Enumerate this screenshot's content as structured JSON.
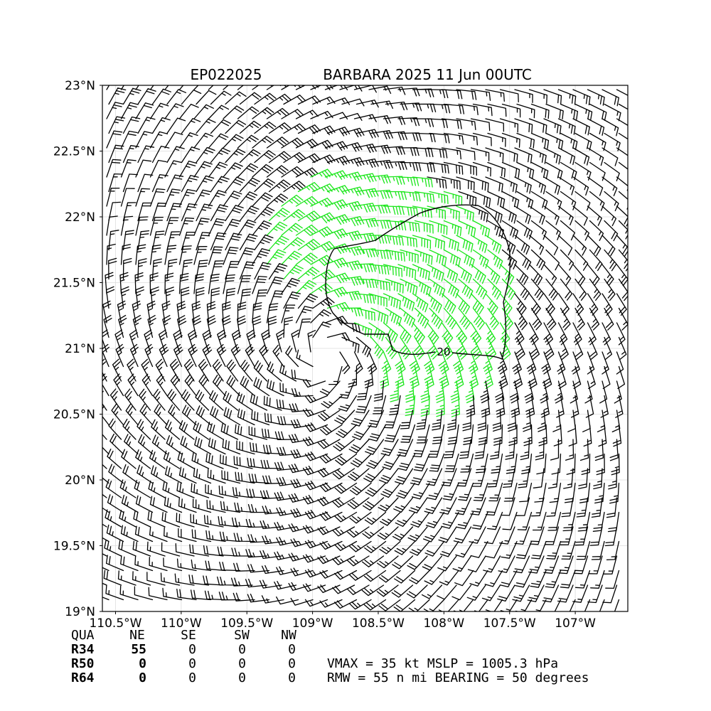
{
  "chart_data": {
    "type": "wind-barb map",
    "title_left": "EP022025",
    "title_right": "BARBARA 2025 11 Jun 00UTC",
    "xlim": [
      -110.6,
      -106.6
    ],
    "ylim": [
      19.0,
      23.0
    ],
    "x_ticks": [
      {
        "value": -110.5,
        "label": "110.5°W"
      },
      {
        "value": -110.0,
        "label": "110°W"
      },
      {
        "value": -109.5,
        "label": "109.5°W"
      },
      {
        "value": -109.0,
        "label": "109°W"
      },
      {
        "value": -108.5,
        "label": "108.5°W"
      },
      {
        "value": -108.0,
        "label": "108°W"
      },
      {
        "value": -107.5,
        "label": "107.5°W"
      },
      {
        "value": -107.0,
        "label": "107°W"
      }
    ],
    "y_ticks": [
      {
        "value": 19.0,
        "label": "19°N"
      },
      {
        "value": 19.5,
        "label": "19.5°N"
      },
      {
        "value": 20.0,
        "label": "20°N"
      },
      {
        "value": 20.5,
        "label": "20.5°N"
      },
      {
        "value": 21.0,
        "label": "21°N"
      },
      {
        "value": 21.5,
        "label": "21.5°N"
      },
      {
        "value": 22.0,
        "label": "22°N"
      },
      {
        "value": 22.5,
        "label": "22.5°N"
      },
      {
        "value": 23.0,
        "label": "23°N"
      }
    ],
    "grid": true,
    "storm_center": {
      "lon": -108.9,
      "lat": 20.95
    },
    "rmw_nmi": 55,
    "max_wind_bearing_deg": 50,
    "wind_color_thresholds_kt": [
      {
        "min": 0,
        "color": "#000000"
      },
      {
        "min": 34,
        "color": "#19e619"
      },
      {
        "min": 50,
        "color": "#e6a817"
      }
    ],
    "contour": {
      "level": 20,
      "label": "20"
    }
  },
  "table": {
    "headers": [
      "QUA",
      "NE",
      "SE",
      "SW",
      "NW"
    ],
    "rows": [
      {
        "label": "R34",
        "values": [
          "55",
          "0",
          "0",
          "0"
        ]
      },
      {
        "label": "R50",
        "values": [
          "0",
          "0",
          "0",
          "0"
        ]
      },
      {
        "label": "R64",
        "values": [
          "0",
          "0",
          "0",
          "0"
        ]
      }
    ]
  },
  "summary": {
    "line1": "VMAX =  35 kt MSLP = 1005.3 hPa",
    "line2": "RMW =  55 n mi BEARING =  50 degrees"
  },
  "colors": {
    "barb_default": "#000000",
    "barb_34kt": "#19e619",
    "barb_50kt": "#e6a817",
    "gridline": "#dddddd"
  }
}
